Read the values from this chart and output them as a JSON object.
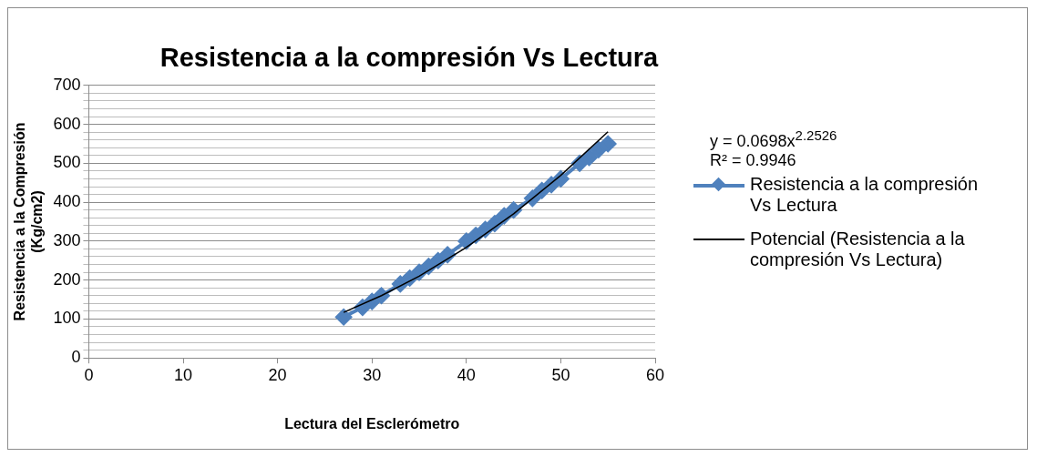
{
  "chart_data": {
    "type": "line",
    "title": "Resistencia a la compresión Vs Lectura",
    "xlabel": "Lectura del Esclerómetro",
    "ylabel": "Resistencia a la Compresión (Kg/cm2)",
    "xlim": [
      0,
      60
    ],
    "xticks": [
      0,
      10,
      20,
      30,
      40,
      50,
      60
    ],
    "ylim": [
      0,
      700
    ],
    "yticks": [
      0,
      {
        "value": 20,
        "label": null
      },
      {
        "value": 40,
        "label": null
      },
      {
        "value": 60,
        "label": null
      },
      {
        "value": 80,
        "label": null
      },
      100,
      {
        "value": 120,
        "label": null
      },
      {
        "value": 140,
        "label": null
      },
      {
        "value": 160,
        "label": null
      },
      {
        "value": 180,
        "label": null
      },
      200,
      {
        "value": 220,
        "label": null
      },
      {
        "value": 240,
        "label": null
      },
      {
        "value": 260,
        "label": null
      },
      {
        "value": 280,
        "label": null
      },
      300,
      {
        "value": 320,
        "label": null
      },
      {
        "value": 340,
        "label": null
      },
      {
        "value": 360,
        "label": null
      },
      {
        "value": 380,
        "label": null
      },
      400,
      {
        "value": 420,
        "label": null
      },
      {
        "value": 440,
        "label": null
      },
      {
        "value": 460,
        "label": null
      },
      {
        "value": 480,
        "label": null
      },
      500,
      {
        "value": 520,
        "label": null
      },
      {
        "value": 540,
        "label": null
      },
      {
        "value": 560,
        "label": null
      },
      {
        "value": 580,
        "label": null
      },
      600,
      {
        "value": 620,
        "label": null
      },
      {
        "value": 640,
        "label": null
      },
      {
        "value": 660,
        "label": null
      },
      {
        "value": 680,
        "label": null
      },
      700
    ],
    "grid": "y",
    "legend": "right",
    "marker": "diamond",
    "line_style": "solid",
    "annotations": [
      "y = 0.0698x$^{2.2526}$",
      "R² = 0.9946"
    ],
    "series": [
      {
        "name": "Resistencia a la compresión Vs Lectura",
        "type": "line",
        "color": "#4f81bd",
        "x": [
          27,
          29,
          30,
          31,
          33,
          34,
          35,
          36,
          37,
          38,
          40,
          41,
          42,
          43,
          44,
          45,
          47,
          48,
          49,
          50,
          52,
          53,
          54,
          55
        ],
        "values": [
          105,
          130,
          145,
          160,
          190,
          205,
          220,
          235,
          250,
          265,
          300,
          315,
          330,
          345,
          365,
          380,
          410,
          430,
          445,
          460,
          500,
          515,
          535,
          550
        ]
      },
      {
        "name": "Potencial (Resistencia a la compresión Vs Lectura)",
        "type": "line",
        "marker": "none",
        "color": "#000000",
        "x": [
          27,
          31,
          35,
          40,
          45,
          50,
          55
        ],
        "values": [
          117,
          160,
          210,
          284,
          370,
          469,
          581
        ]
      }
    ]
  }
}
